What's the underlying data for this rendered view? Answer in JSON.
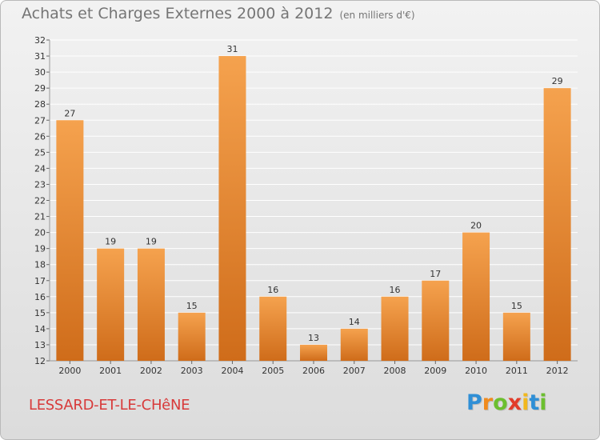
{
  "header": {
    "title": "Achats et Charges Externes 2000 à 2012",
    "unit": "(en milliers d'€)"
  },
  "footer": {
    "commune": "LESSARD-ET-LE-CHêNE",
    "logo_letters": [
      {
        "ch": "P",
        "color": "#2f8fd6"
      },
      {
        "ch": "r",
        "color": "#f08a1c"
      },
      {
        "ch": "o",
        "color": "#6cbf2f"
      },
      {
        "ch": "x",
        "color": "#e23c2a"
      },
      {
        "ch": "i",
        "color": "#f2b81d"
      },
      {
        "ch": "t",
        "color": "#2f8fd6"
      },
      {
        "ch": "i",
        "color": "#6cbf2f"
      }
    ]
  },
  "colors": {
    "bar_light": "#f5a24e",
    "bar_dark": "#cf6c1a",
    "grid": "#ffffff",
    "axis_text": "#333333",
    "value_text": "#333333"
  },
  "chart_data": {
    "type": "bar",
    "title": "Achats et Charges Externes 2000 à 2012",
    "subtitle": "(en milliers d'€)",
    "categories": [
      "2000",
      "2001",
      "2002",
      "2003",
      "2004",
      "2005",
      "2006",
      "2007",
      "2008",
      "2009",
      "2010",
      "2011",
      "2012"
    ],
    "values": [
      27,
      19,
      19,
      15,
      31,
      16,
      13,
      14,
      16,
      17,
      20,
      15,
      29
    ],
    "ylim": [
      12,
      32
    ],
    "yticks": [
      12,
      13,
      14,
      15,
      16,
      17,
      18,
      19,
      20,
      21,
      22,
      23,
      24,
      25,
      26,
      27,
      28,
      29,
      30,
      31,
      32
    ],
    "grid": true,
    "legend": "none"
  }
}
